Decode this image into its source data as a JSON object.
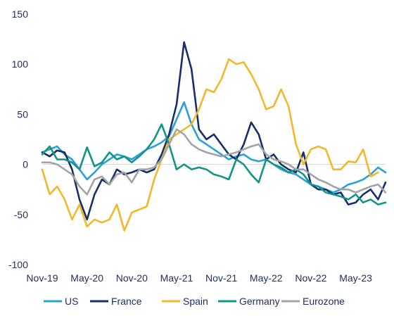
{
  "chart_data": {
    "type": "line",
    "title": "",
    "xlabel": "",
    "ylabel": "",
    "ylim": [
      -100,
      150
    ],
    "yticks": [
      -100,
      -50,
      0,
      50,
      100,
      150
    ],
    "x_tick_labels": [
      "Nov-19",
      "May-20",
      "Nov-20",
      "May-21",
      "Nov-21",
      "May-22",
      "Nov-22",
      "May-23"
    ],
    "x_tick_months": [
      0,
      6,
      12,
      18,
      24,
      30,
      36,
      42
    ],
    "x_range_months": [
      0,
      46
    ],
    "grid": false,
    "legend_position": "bottom",
    "series": [
      {
        "name": "US",
        "color": "#2aa0d8",
        "points": [
          [
            0,
            12
          ],
          [
            1,
            15
          ],
          [
            2,
            18
          ],
          [
            3,
            10
          ],
          [
            4,
            5
          ],
          [
            5,
            -5
          ],
          [
            6,
            -15
          ],
          [
            7,
            -8
          ],
          [
            8,
            0
          ],
          [
            9,
            5
          ],
          [
            10,
            10
          ],
          [
            11,
            8
          ],
          [
            12,
            5
          ],
          [
            13,
            10
          ],
          [
            14,
            15
          ],
          [
            15,
            18
          ],
          [
            16,
            22
          ],
          [
            17,
            28
          ],
          [
            18,
            45
          ],
          [
            19,
            62
          ],
          [
            20,
            40
          ],
          [
            21,
            25
          ],
          [
            22,
            20
          ],
          [
            23,
            15
          ],
          [
            24,
            10
          ],
          [
            25,
            5
          ],
          [
            26,
            8
          ],
          [
            27,
            10
          ],
          [
            28,
            5
          ],
          [
            29,
            3
          ],
          [
            30,
            5
          ],
          [
            31,
            0
          ],
          [
            32,
            -5
          ],
          [
            33,
            -8
          ],
          [
            34,
            -10
          ],
          [
            35,
            -15
          ],
          [
            36,
            -20
          ],
          [
            37,
            -22
          ],
          [
            38,
            -25
          ],
          [
            39,
            -28
          ],
          [
            40,
            -25
          ],
          [
            41,
            -20
          ],
          [
            42,
            -18
          ],
          [
            43,
            -15
          ],
          [
            44,
            -10
          ],
          [
            45,
            -3
          ],
          [
            46,
            -8
          ]
        ]
      },
      {
        "name": "France",
        "color": "#152f6b",
        "points": [
          [
            0,
            12
          ],
          [
            1,
            8
          ],
          [
            2,
            14
          ],
          [
            3,
            12
          ],
          [
            4,
            -5
          ],
          [
            5,
            -35
          ],
          [
            6,
            -55
          ],
          [
            7,
            -30
          ],
          [
            8,
            -15
          ],
          [
            9,
            -20
          ],
          [
            10,
            -5
          ],
          [
            11,
            -10
          ],
          [
            12,
            -8
          ],
          [
            13,
            -5
          ],
          [
            14,
            -8
          ],
          [
            15,
            -5
          ],
          [
            16,
            10
          ],
          [
            17,
            30
          ],
          [
            18,
            60
          ],
          [
            19,
            122
          ],
          [
            20,
            95
          ],
          [
            21,
            35
          ],
          [
            22,
            25
          ],
          [
            23,
            30
          ],
          [
            24,
            20
          ],
          [
            25,
            10
          ],
          [
            26,
            5
          ],
          [
            27,
            20
          ],
          [
            28,
            42
          ],
          [
            29,
            30
          ],
          [
            30,
            5
          ],
          [
            31,
            10
          ],
          [
            32,
            0
          ],
          [
            33,
            -5
          ],
          [
            34,
            -8
          ],
          [
            35,
            12
          ],
          [
            36,
            -20
          ],
          [
            37,
            -25
          ],
          [
            38,
            -25
          ],
          [
            39,
            -30
          ],
          [
            40,
            -28
          ],
          [
            41,
            -40
          ],
          [
            42,
            -38
          ],
          [
            43,
            -30
          ],
          [
            44,
            -25
          ],
          [
            45,
            -35
          ],
          [
            46,
            -18
          ]
        ]
      },
      {
        "name": "Spain",
        "color": "#f2b82c",
        "points": [
          [
            0,
            -5
          ],
          [
            1,
            -30
          ],
          [
            2,
            -22
          ],
          [
            3,
            -35
          ],
          [
            4,
            -55
          ],
          [
            5,
            -40
          ],
          [
            6,
            -62
          ],
          [
            7,
            -55
          ],
          [
            8,
            -58
          ],
          [
            9,
            -55
          ],
          [
            10,
            -40
          ],
          [
            11,
            -66
          ],
          [
            12,
            -48
          ],
          [
            13,
            -45
          ],
          [
            14,
            -42
          ],
          [
            15,
            -15
          ],
          [
            16,
            5
          ],
          [
            17,
            25
          ],
          [
            18,
            30
          ],
          [
            19,
            35
          ],
          [
            20,
            40
          ],
          [
            21,
            55
          ],
          [
            22,
            75
          ],
          [
            23,
            72
          ],
          [
            24,
            85
          ],
          [
            25,
            105
          ],
          [
            26,
            100
          ],
          [
            27,
            102
          ],
          [
            28,
            90
          ],
          [
            29,
            75
          ],
          [
            30,
            55
          ],
          [
            31,
            58
          ],
          [
            32,
            75
          ],
          [
            33,
            58
          ],
          [
            34,
            20
          ],
          [
            35,
            0
          ],
          [
            36,
            15
          ],
          [
            37,
            18
          ],
          [
            38,
            15
          ],
          [
            39,
            -5
          ],
          [
            40,
            -5
          ],
          [
            41,
            3
          ],
          [
            42,
            2
          ],
          [
            43,
            15
          ],
          [
            44,
            -12
          ],
          [
            45,
            -8
          ]
        ]
      },
      {
        "name": "Germany",
        "color": "#129488",
        "points": [
          [
            0,
            10
          ],
          [
            1,
            18
          ],
          [
            2,
            5
          ],
          [
            3,
            5
          ],
          [
            4,
            2
          ],
          [
            5,
            -5
          ],
          [
            6,
            17
          ],
          [
            7,
            -2
          ],
          [
            8,
            2
          ],
          [
            9,
            12
          ],
          [
            10,
            5
          ],
          [
            11,
            8
          ],
          [
            12,
            2
          ],
          [
            13,
            8
          ],
          [
            14,
            15
          ],
          [
            15,
            25
          ],
          [
            16,
            40
          ],
          [
            17,
            20
          ],
          [
            18,
            -5
          ],
          [
            19,
            0
          ],
          [
            20,
            -5
          ],
          [
            21,
            -3
          ],
          [
            22,
            -5
          ],
          [
            23,
            -10
          ],
          [
            24,
            -12
          ],
          [
            25,
            -15
          ],
          [
            26,
            5
          ],
          [
            27,
            0
          ],
          [
            28,
            -10
          ],
          [
            29,
            -18
          ],
          [
            30,
            5
          ],
          [
            31,
            0
          ],
          [
            32,
            -3
          ],
          [
            33,
            -8
          ],
          [
            34,
            -5
          ],
          [
            35,
            -10
          ],
          [
            36,
            -20
          ],
          [
            37,
            -22
          ],
          [
            38,
            -28
          ],
          [
            39,
            -30
          ],
          [
            40,
            -32
          ],
          [
            41,
            -35
          ],
          [
            42,
            -30
          ],
          [
            43,
            -38
          ],
          [
            44,
            -35
          ],
          [
            45,
            -40
          ],
          [
            46,
            -38
          ]
        ]
      },
      {
        "name": "Eurozone",
        "color": "#a3a3a3",
        "points": [
          [
            0,
            2
          ],
          [
            1,
            2
          ],
          [
            2,
            0
          ],
          [
            3,
            -5
          ],
          [
            4,
            -10
          ],
          [
            5,
            -22
          ],
          [
            6,
            -30
          ],
          [
            7,
            -15
          ],
          [
            8,
            -12
          ],
          [
            9,
            -20
          ],
          [
            10,
            -10
          ],
          [
            11,
            -8
          ],
          [
            12,
            -18
          ],
          [
            13,
            -5
          ],
          [
            14,
            -5
          ],
          [
            15,
            -3
          ],
          [
            16,
            5
          ],
          [
            17,
            20
          ],
          [
            18,
            35
          ],
          [
            19,
            30
          ],
          [
            20,
            20
          ],
          [
            21,
            15
          ],
          [
            22,
            12
          ],
          [
            23,
            10
          ],
          [
            24,
            8
          ],
          [
            25,
            10
          ],
          [
            26,
            12
          ],
          [
            27,
            15
          ],
          [
            28,
            18
          ],
          [
            29,
            20
          ],
          [
            30,
            10
          ],
          [
            31,
            5
          ],
          [
            32,
            3
          ],
          [
            33,
            0
          ],
          [
            34,
            -5
          ],
          [
            35,
            -5
          ],
          [
            36,
            -10
          ],
          [
            37,
            -15
          ],
          [
            38,
            -18
          ],
          [
            39,
            -22
          ],
          [
            40,
            -25
          ],
          [
            41,
            -25
          ],
          [
            42,
            -28
          ],
          [
            43,
            -25
          ],
          [
            44,
            -22
          ],
          [
            45,
            -20
          ],
          [
            46,
            -28
          ]
        ]
      }
    ]
  }
}
